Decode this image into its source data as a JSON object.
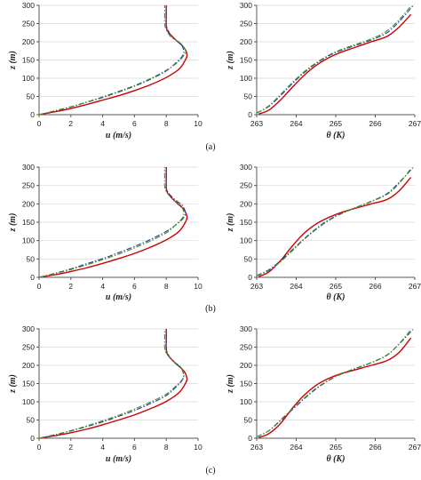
{
  "panels": [
    {
      "label": "(a)"
    },
    {
      "label": "(b)"
    },
    {
      "label": "(c)"
    }
  ],
  "colors": {
    "solid": "#cc0000",
    "dashdot_blue": "#1f3f9e",
    "dashdot_green": "#4f8f2a",
    "axis": "#555555",
    "grid": "#d9d9d9"
  },
  "chart_data": [
    {
      "type": "line",
      "panel": "a",
      "xlabel": "u (m/s)",
      "ylabel": "z (m)",
      "xlim": [
        0,
        10
      ],
      "ylim": [
        0,
        300
      ],
      "xticks": [
        "0",
        "2",
        "4",
        "6",
        "8",
        "10"
      ],
      "yticks": [
        "0",
        "50",
        "100",
        "150",
        "200",
        "250",
        "300"
      ],
      "series": [
        {
          "style": "solid",
          "color": "#cc0000",
          "x": [
            0,
            1,
            2,
            3,
            4,
            5,
            6,
            7,
            8,
            8.8,
            9.2,
            9.3,
            9.1,
            8.6,
            8.1,
            8.0,
            8.0,
            8.0
          ],
          "y": [
            0,
            8,
            17,
            28,
            40,
            52,
            66,
            82,
            102,
            125,
            150,
            165,
            185,
            205,
            228,
            245,
            270,
            300
          ]
        },
        {
          "style": "dashdot",
          "color": "#1f3f9e",
          "x": [
            0,
            1,
            2,
            3,
            4,
            5,
            6,
            7,
            8,
            8.6,
            9.0,
            9.1,
            8.9,
            8.4,
            8.1,
            8.0,
            8.0,
            8.0
          ],
          "y": [
            0,
            10,
            21,
            34,
            47,
            62,
            78,
            97,
            120,
            142,
            160,
            175,
            195,
            212,
            232,
            248,
            272,
            300
          ]
        },
        {
          "style": "dashdot",
          "color": "#4f8f2a",
          "x": [
            0,
            1,
            2,
            3,
            4,
            5,
            6,
            7,
            8,
            8.7,
            9.1,
            9.2,
            8.9,
            8.3,
            8.0,
            7.9,
            7.9,
            7.9
          ],
          "y": [
            0,
            11,
            22,
            35,
            49,
            64,
            80,
            99,
            122,
            143,
            162,
            176,
            196,
            213,
            233,
            249,
            272,
            300
          ]
        }
      ]
    },
    {
      "type": "line",
      "panel": "a",
      "xlabel": "θ (K)",
      "ylabel": "z (m)",
      "xlim": [
        263,
        267
      ],
      "ylim": [
        0,
        300
      ],
      "xticks": [
        "263",
        "264",
        "265",
        "266",
        "267"
      ],
      "yticks": [
        "0",
        "50",
        "100",
        "150",
        "200",
        "250",
        "300"
      ],
      "series": [
        {
          "style": "solid",
          "color": "#cc0000",
          "x": [
            263.05,
            263.3,
            263.6,
            263.9,
            264.2,
            264.5,
            264.8,
            265.1,
            265.5,
            265.9,
            266.3,
            266.6,
            266.9
          ],
          "y": [
            2,
            12,
            40,
            75,
            108,
            135,
            155,
            170,
            185,
            200,
            215,
            240,
            275
          ]
        },
        {
          "style": "dashdot",
          "color": "#1f3f9e",
          "x": [
            263.0,
            263.3,
            263.6,
            263.9,
            264.2,
            264.5,
            264.8,
            265.1,
            265.5,
            265.9,
            266.3,
            266.6,
            266.95
          ],
          "y": [
            5,
            22,
            52,
            85,
            115,
            140,
            160,
            175,
            190,
            205,
            225,
            255,
            298
          ]
        },
        {
          "style": "dashdot",
          "color": "#4f8f2a",
          "x": [
            263.0,
            263.3,
            263.6,
            263.9,
            264.2,
            264.5,
            264.8,
            265.1,
            265.5,
            265.9,
            266.3,
            266.6,
            266.9
          ],
          "y": [
            4,
            24,
            55,
            88,
            118,
            142,
            162,
            177,
            193,
            208,
            230,
            260,
            298
          ]
        }
      ]
    },
    {
      "type": "line",
      "panel": "b",
      "xlabel": "u (m/s)",
      "ylabel": "z (m)",
      "xlim": [
        0,
        10
      ],
      "ylim": [
        0,
        300
      ],
      "xticks": [
        "0",
        "2",
        "4",
        "6",
        "8",
        "10"
      ],
      "yticks": [
        "0",
        "50",
        "100",
        "150",
        "200",
        "250",
        "300"
      ],
      "series": [
        {
          "style": "solid",
          "color": "#cc0000",
          "x": [
            0,
            1,
            2,
            3,
            4,
            5,
            6,
            7,
            8,
            8.8,
            9.2,
            9.3,
            9.1,
            8.6,
            8.1,
            8.0,
            8.0,
            8.0
          ],
          "y": [
            0,
            7,
            16,
            26,
            38,
            51,
            65,
            82,
            102,
            125,
            150,
            165,
            185,
            205,
            228,
            245,
            270,
            300
          ]
        },
        {
          "style": "dashdot",
          "color": "#1f3f9e",
          "x": [
            0,
            1,
            2,
            3,
            4,
            5,
            6,
            7,
            8,
            8.7,
            9.1,
            9.2,
            9.0,
            8.5,
            8.1,
            8.0,
            8.0,
            8.0
          ],
          "y": [
            0,
            11,
            23,
            37,
            51,
            67,
            84,
            103,
            125,
            146,
            163,
            177,
            196,
            213,
            232,
            248,
            272,
            300
          ]
        },
        {
          "style": "dashdot",
          "color": "#4f8f2a",
          "x": [
            0,
            1,
            2,
            3,
            4,
            5,
            6,
            7,
            8,
            8.6,
            9.0,
            9.1,
            8.9,
            8.4,
            8.0,
            7.9,
            7.9,
            7.9
          ],
          "y": [
            0,
            10,
            21,
            34,
            48,
            63,
            80,
            99,
            121,
            143,
            161,
            176,
            196,
            213,
            233,
            249,
            272,
            300
          ]
        }
      ]
    },
    {
      "type": "line",
      "panel": "b",
      "xlabel": "θ (K)",
      "ylabel": "z (m)",
      "xlim": [
        263,
        267
      ],
      "ylim": [
        0,
        300
      ],
      "xticks": [
        "263",
        "264",
        "265",
        "266",
        "267"
      ],
      "yticks": [
        "0",
        "50",
        "100",
        "150",
        "200",
        "250",
        "300"
      ],
      "series": [
        {
          "style": "solid",
          "color": "#cc0000",
          "x": [
            263.05,
            263.3,
            263.6,
            263.9,
            264.2,
            264.5,
            264.8,
            265.1,
            265.5,
            265.9,
            266.3,
            266.6,
            266.9
          ],
          "y": [
            2,
            14,
            45,
            85,
            120,
            145,
            162,
            175,
            188,
            200,
            212,
            235,
            272
          ]
        },
        {
          "style": "dashdot",
          "color": "#1f3f9e",
          "x": [
            263.0,
            263.3,
            263.6,
            263.9,
            264.2,
            264.5,
            264.8,
            265.1,
            265.5,
            265.9,
            266.3,
            266.6,
            266.95
          ],
          "y": [
            5,
            20,
            45,
            75,
            105,
            132,
            155,
            172,
            190,
            207,
            228,
            258,
            298
          ]
        },
        {
          "style": "dashdot",
          "color": "#4f8f2a",
          "x": [
            263.0,
            263.3,
            263.6,
            263.9,
            264.2,
            264.5,
            264.8,
            265.1,
            265.5,
            265.9,
            266.3,
            266.6,
            266.9
          ],
          "y": [
            4,
            18,
            42,
            72,
            103,
            130,
            153,
            171,
            189,
            206,
            226,
            255,
            296
          ]
        }
      ]
    },
    {
      "type": "line",
      "panel": "c",
      "xlabel": "u (m/s)",
      "ylabel": "z (m)",
      "xlim": [
        0,
        10
      ],
      "ylim": [
        0,
        300
      ],
      "xticks": [
        "0",
        "2",
        "4",
        "6",
        "8",
        "10"
      ],
      "yticks": [
        "0",
        "50",
        "100",
        "150",
        "200",
        "250",
        "300"
      ],
      "series": [
        {
          "style": "solid",
          "color": "#cc0000",
          "x": [
            0,
            1,
            2,
            3,
            4,
            5,
            6,
            7,
            8,
            8.8,
            9.2,
            9.3,
            9.1,
            8.6,
            8.1,
            8.0,
            8.0,
            8.0
          ],
          "y": [
            0,
            7,
            15,
            25,
            37,
            50,
            64,
            81,
            101,
            125,
            150,
            165,
            185,
            205,
            228,
            245,
            270,
            300
          ]
        },
        {
          "style": "dashdot",
          "color": "#1f3f9e",
          "x": [
            0,
            1,
            2,
            3,
            4,
            5,
            6,
            7,
            8,
            8.6,
            9.0,
            9.1,
            8.9,
            8.4,
            8.1,
            8.0,
            8.0,
            8.0
          ],
          "y": [
            0,
            9,
            20,
            32,
            45,
            60,
            76,
            95,
            117,
            140,
            159,
            174,
            194,
            212,
            232,
            248,
            272,
            300
          ]
        },
        {
          "style": "dashdot",
          "color": "#4f8f2a",
          "x": [
            0,
            1,
            2,
            3,
            4,
            5,
            6,
            7,
            8,
            8.6,
            9.0,
            9.1,
            8.9,
            8.4,
            8.0,
            7.9,
            7.9,
            7.9
          ],
          "y": [
            0,
            10,
            21,
            34,
            48,
            63,
            80,
            99,
            121,
            143,
            161,
            176,
            196,
            213,
            233,
            249,
            272,
            300
          ]
        }
      ]
    },
    {
      "type": "line",
      "panel": "c",
      "xlabel": "θ (K)",
      "ylabel": "z (m)",
      "xlim": [
        263,
        267
      ],
      "ylim": [
        0,
        300
      ],
      "xticks": [
        "263",
        "264",
        "265",
        "266",
        "267"
      ],
      "yticks": [
        "0",
        "50",
        "100",
        "150",
        "200",
        "250",
        "300"
      ],
      "series": [
        {
          "style": "solid",
          "color": "#cc0000",
          "x": [
            263.05,
            263.3,
            263.6,
            263.9,
            264.2,
            264.5,
            264.8,
            265.1,
            265.5,
            265.9,
            266.3,
            266.6,
            266.9
          ],
          "y": [
            2,
            12,
            40,
            82,
            118,
            145,
            163,
            176,
            188,
            200,
            213,
            235,
            275
          ]
        },
        {
          "style": "dashdot",
          "color": "#1f3f9e",
          "x": [
            263.0,
            263.3,
            263.6,
            263.9,
            264.2,
            264.5,
            264.8,
            265.1,
            265.5,
            265.9,
            266.3,
            266.6,
            266.95
          ],
          "y": [
            4,
            20,
            48,
            78,
            108,
            135,
            157,
            174,
            191,
            207,
            228,
            258,
            298
          ]
        },
        {
          "style": "dashdot",
          "color": "#4f8f2a",
          "x": [
            263.0,
            263.3,
            263.6,
            263.9,
            264.2,
            264.5,
            264.8,
            265.1,
            265.5,
            265.9,
            266.3,
            266.6,
            266.9
          ],
          "y": [
            4,
            20,
            50,
            80,
            110,
            137,
            158,
            175,
            192,
            208,
            229,
            259,
            298
          ]
        }
      ]
    }
  ]
}
